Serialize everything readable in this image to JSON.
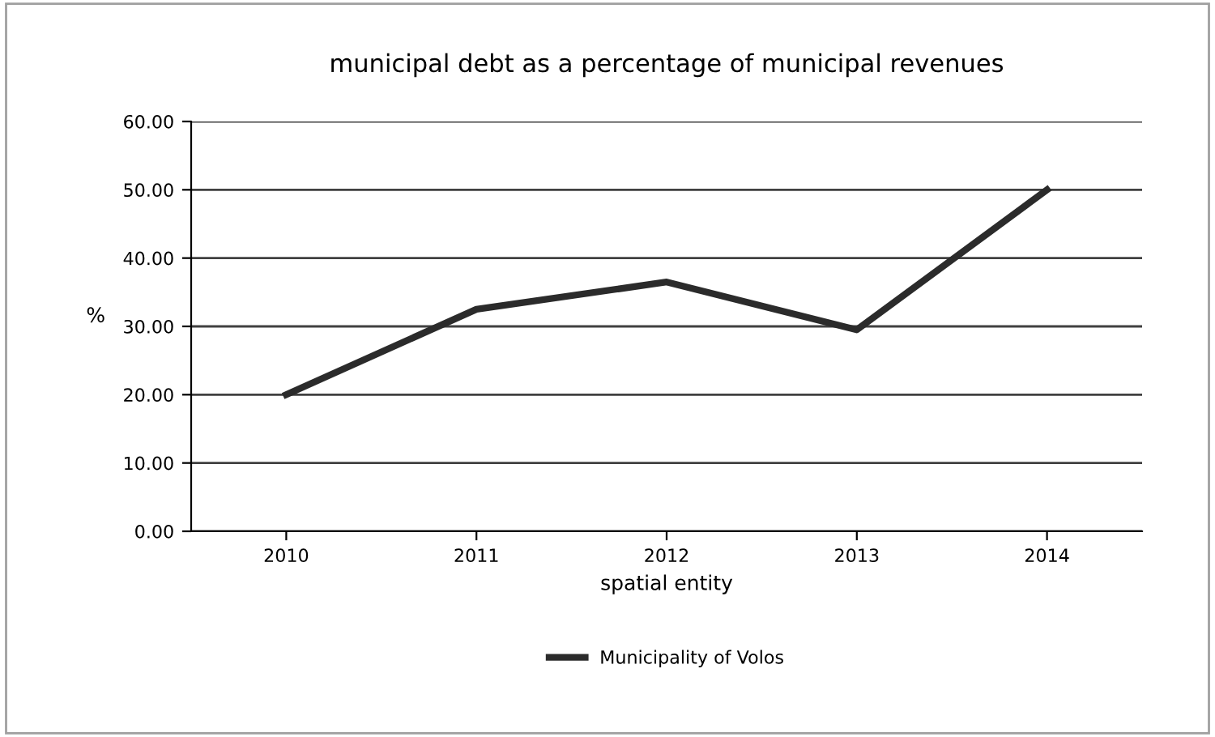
{
  "chart_data": {
    "type": "line",
    "title": "municipal debt as a percentage of municipal revenues",
    "xlabel": "spatial entity",
    "ylabel": "%",
    "categories": [
      "2010",
      "2011",
      "2012",
      "2013",
      "2014"
    ],
    "series": [
      {
        "name": "Municipality of Volos",
        "color": "#2b2b2b",
        "values": [
          20.0,
          32.5,
          36.5,
          29.5,
          50.0
        ]
      }
    ],
    "ylim": [
      0,
      60
    ],
    "yticks": [
      {
        "value": 0,
        "label": "0.00"
      },
      {
        "value": 10,
        "label": "10.00"
      },
      {
        "value": 20,
        "label": "20.00"
      },
      {
        "value": 30,
        "label": "30.00"
      },
      {
        "value": 40,
        "label": "40.00"
      },
      {
        "value": 50,
        "label": "50.00"
      },
      {
        "value": 60,
        "label": "60.00"
      }
    ],
    "grid": "y",
    "legend": "bottom",
    "marker": "none",
    "line_style": "solid"
  }
}
